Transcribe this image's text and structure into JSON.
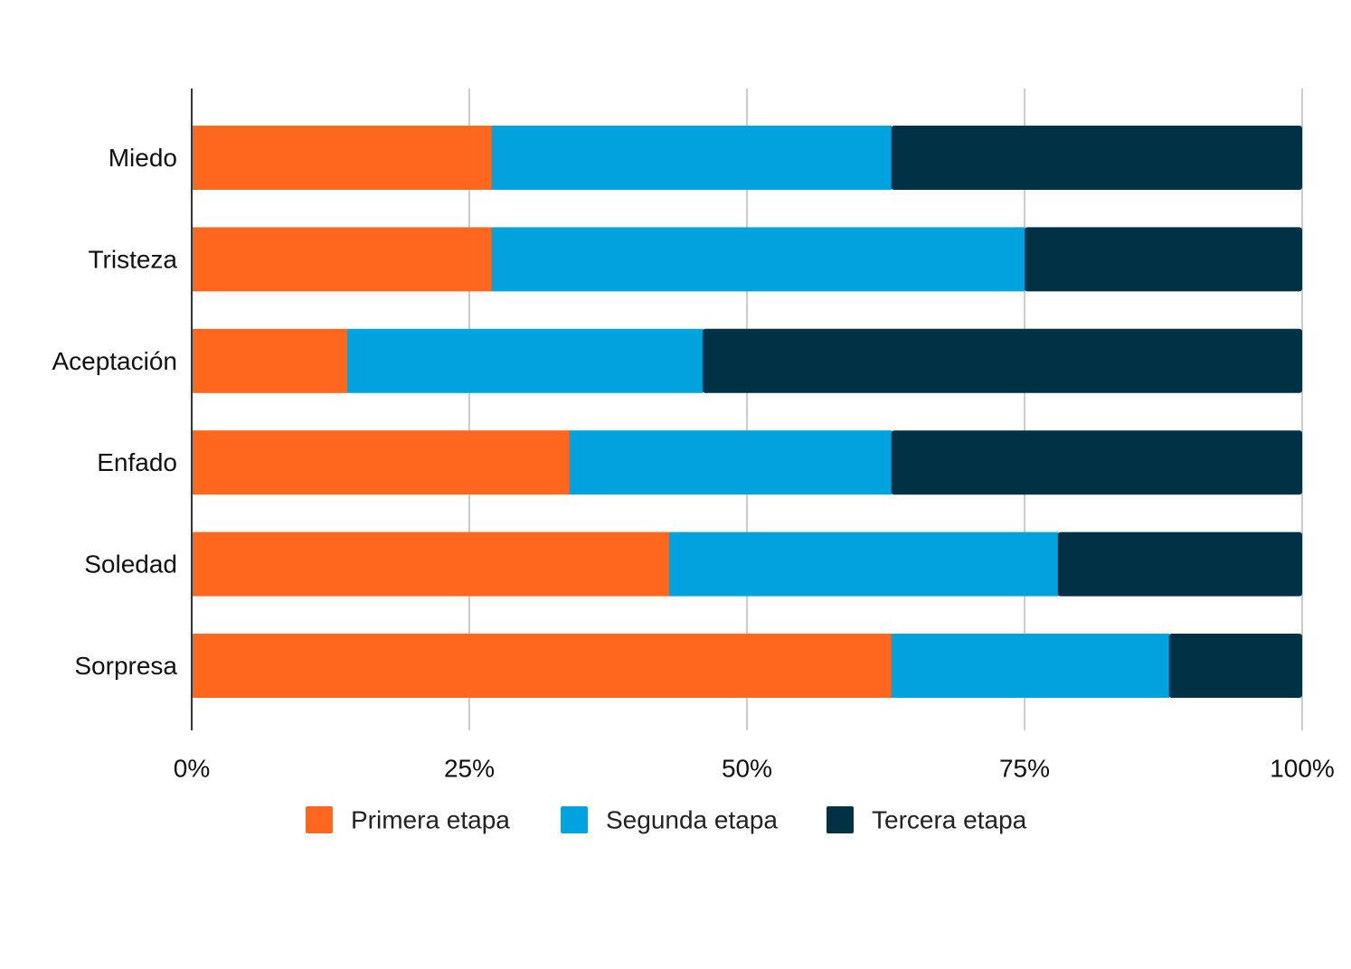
{
  "chart_data": {
    "type": "bar",
    "orientation": "horizontal",
    "stacked": true,
    "normalized": true,
    "categories": [
      "Miedo",
      "Tristeza",
      "Aceptación",
      "Enfado",
      "Soledad",
      "Sorpresa"
    ],
    "series": [
      {
        "name": "Primera etapa",
        "color": "#FF671F",
        "values": [
          27,
          27,
          14,
          34,
          43,
          63
        ]
      },
      {
        "name": "Segunda etapa",
        "color": "#00A3DE",
        "values": [
          36,
          48,
          32,
          29,
          35,
          25
        ]
      },
      {
        "name": "Tercera etapa",
        "color": "#003145",
        "values": [
          37,
          25,
          54,
          37,
          22,
          12
        ]
      }
    ],
    "xlim": [
      0,
      100
    ],
    "xticks": [
      0,
      25,
      50,
      75,
      100
    ],
    "xtick_labels": [
      "0%",
      "25%",
      "50%",
      "75%",
      "100%"
    ],
    "title": "",
    "xlabel": "",
    "ylabel": "",
    "grid": true,
    "legend_position": "bottom"
  }
}
